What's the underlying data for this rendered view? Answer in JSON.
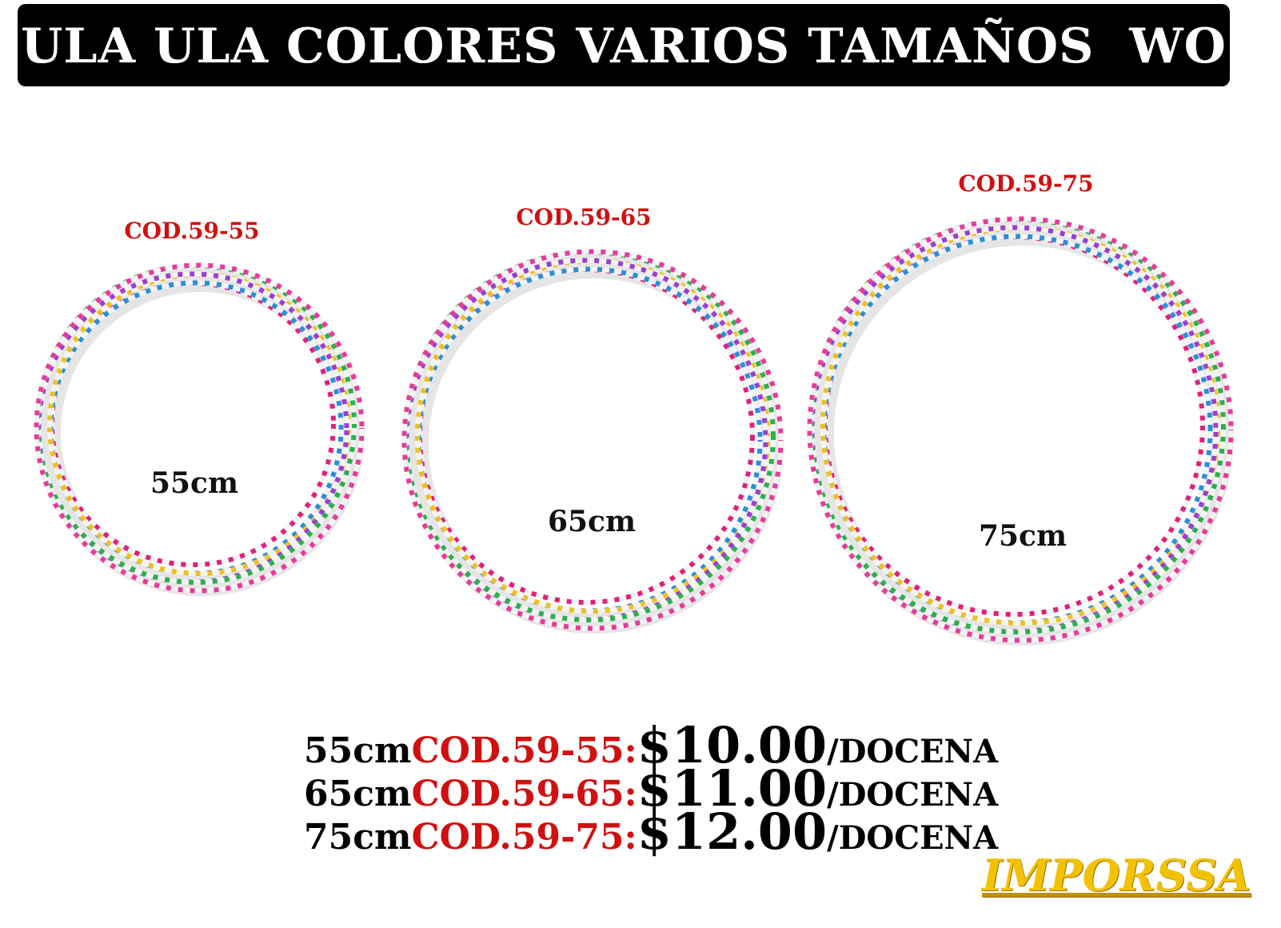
{
  "header": {
    "title": "ULA ULA COLORES VARIOS TAMAÑOS  WO"
  },
  "products": [
    {
      "code": "COD.59-55",
      "size": "55cm"
    },
    {
      "code": "COD.59-65",
      "size": "65cm"
    },
    {
      "code": "COD.59-75",
      "size": "75cm"
    }
  ],
  "prices": [
    {
      "size": "55cm",
      "code": "COD.59-55:",
      "price": "$10.00",
      "unit": "/DOCENA"
    },
    {
      "size": "65cm",
      "code": "COD.59-65:",
      "price": "$11.00",
      "unit": "/DOCENA"
    },
    {
      "size": "75cm",
      "code": "COD.59-75:",
      "price": "$12.00",
      "unit": "/DOCENA"
    }
  ],
  "brand": "IMPORSSA"
}
